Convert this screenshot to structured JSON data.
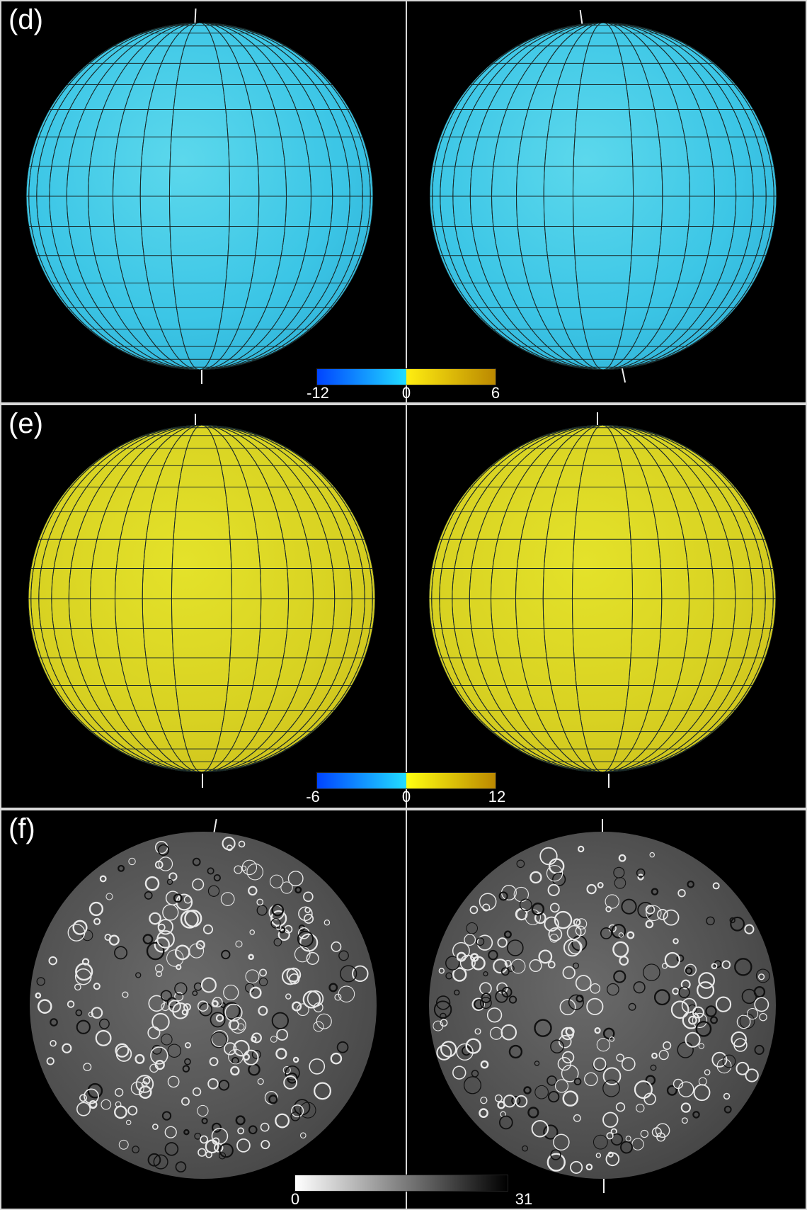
{
  "panels": [
    {
      "label": "(d)",
      "colorbar": {
        "ticks": [
          "-12",
          "0",
          "6"
        ],
        "colors": [
          "#0044ff",
          "#22ddff",
          "#ffee11",
          "#bb8800"
        ]
      }
    },
    {
      "label": "(e)",
      "colorbar": {
        "ticks": [
          "-6",
          "0",
          "12"
        ],
        "colors": [
          "#0044ff",
          "#22ddff",
          "#ffff11",
          "#bb8800"
        ]
      }
    },
    {
      "label": "(f)",
      "colorbar": {
        "ticks": [
          "0",
          "31"
        ],
        "colors": [
          "#ffffff",
          "#000000"
        ]
      }
    }
  ]
}
